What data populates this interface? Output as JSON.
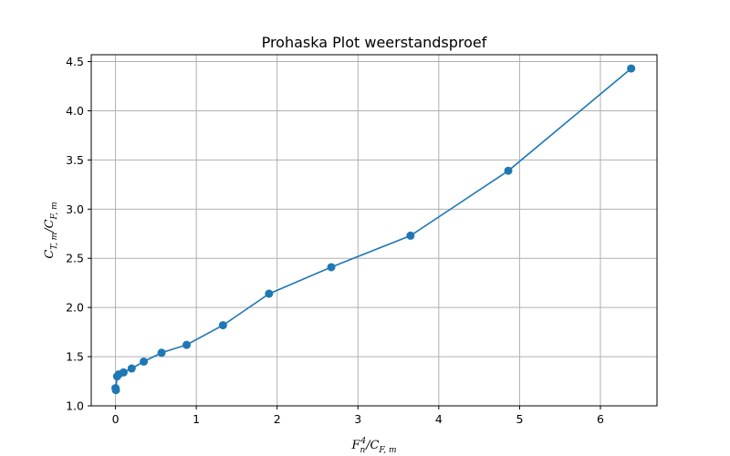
{
  "chart_data": {
    "type": "line",
    "title": "Prohaska Plot weerstandsproef",
    "xlabel": "F_n^4/C_{F,m}",
    "ylabel": "C_{T,m}/C_{F,m}",
    "xlim": [
      -0.3,
      6.7
    ],
    "ylim": [
      1.0,
      4.57
    ],
    "x_ticks": [
      0,
      1,
      2,
      3,
      4,
      5,
      6
    ],
    "y_ticks": [
      1.0,
      1.5,
      2.0,
      2.5,
      3.0,
      3.5,
      4.0,
      4.5
    ],
    "x_tick_labels": [
      "0",
      "1",
      "2",
      "3",
      "4",
      "5",
      "6"
    ],
    "y_tick_labels": [
      "1.0",
      "1.5",
      "2.0",
      "2.5",
      "3.0",
      "3.5",
      "4.0",
      "4.5"
    ],
    "grid": true,
    "line_color": "#1f77b4",
    "marker": "circle",
    "series": [
      {
        "x": [
          0.0,
          0.005,
          0.02,
          0.04,
          0.1,
          0.2,
          0.35,
          0.57,
          0.88,
          1.33,
          1.9,
          2.67,
          3.65,
          4.86,
          6.38
        ],
        "y": [
          1.18,
          1.16,
          1.3,
          1.32,
          1.34,
          1.38,
          1.45,
          1.54,
          1.62,
          1.82,
          2.14,
          2.41,
          2.73,
          3.39,
          4.43
        ]
      }
    ]
  }
}
